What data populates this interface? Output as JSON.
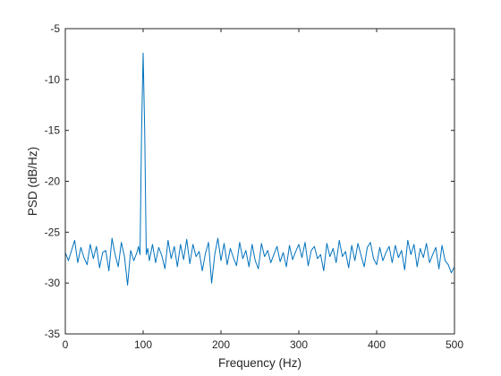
{
  "chart_data": {
    "type": "line",
    "title": "",
    "xlabel": "Frequency (Hz)",
    "ylabel": "PSD (dB/Hz)",
    "xlim": [
      0,
      500
    ],
    "ylim": [
      -35,
      -5
    ],
    "xticks": [
      0,
      100,
      200,
      300,
      400,
      500
    ],
    "yticks": [
      -35,
      -30,
      -25,
      -20,
      -15,
      -10,
      -5
    ],
    "grid": false,
    "legend": "none",
    "colors": {
      "line": "#0072bd",
      "axes": "#262626",
      "background": "#ffffff"
    },
    "series": [
      {
        "x": [
          0,
          4,
          8,
          12,
          16,
          20,
          24,
          28,
          32,
          36,
          40,
          44,
          48,
          52,
          56,
          60,
          64,
          68,
          72,
          76,
          80,
          84,
          88,
          92,
          94,
          96,
          98,
          100,
          102,
          104,
          106,
          108,
          112,
          116,
          120,
          124,
          128,
          132,
          136,
          140,
          144,
          148,
          152,
          156,
          160,
          164,
          168,
          172,
          176,
          180,
          184,
          188,
          192,
          196,
          200,
          204,
          208,
          212,
          216,
          220,
          224,
          228,
          232,
          236,
          240,
          244,
          248,
          252,
          256,
          260,
          264,
          268,
          272,
          276,
          280,
          284,
          288,
          292,
          296,
          300,
          304,
          308,
          312,
          316,
          320,
          324,
          328,
          332,
          336,
          340,
          344,
          348,
          352,
          356,
          360,
          364,
          368,
          372,
          376,
          380,
          384,
          388,
          392,
          396,
          400,
          404,
          408,
          412,
          416,
          420,
          424,
          428,
          432,
          436,
          440,
          444,
          448,
          452,
          456,
          460,
          464,
          468,
          472,
          476,
          480,
          484,
          488,
          492,
          496,
          500
        ],
        "y": [
          -27.0,
          -27.8,
          -26.8,
          -25.8,
          -28.0,
          -26.5,
          -27.5,
          -28.2,
          -26.2,
          -27.6,
          -26.4,
          -28.5,
          -27.0,
          -26.8,
          -28.8,
          -25.6,
          -27.2,
          -28.4,
          -26.0,
          -27.4,
          -30.2,
          -26.8,
          -27.8,
          -27.0,
          -26.4,
          -27.2,
          -15.0,
          -7.4,
          -15.0,
          -27.2,
          -26.6,
          -27.8,
          -26.2,
          -28.0,
          -26.5,
          -27.3,
          -28.6,
          -25.8,
          -27.6,
          -26.4,
          -28.4,
          -26.2,
          -27.7,
          -25.7,
          -28.1,
          -26.2,
          -27.4,
          -26.9,
          -28.8,
          -27.1,
          -26.0,
          -30.0,
          -27.2,
          -25.6,
          -27.8,
          -26.1,
          -28.2,
          -26.6,
          -27.5,
          -28.3,
          -26.0,
          -27.6,
          -26.8,
          -28.4,
          -26.2,
          -27.8,
          -28.6,
          -26.1,
          -27.4,
          -26.8,
          -28.0,
          -27.2,
          -26.4,
          -27.9,
          -27.0,
          -28.4,
          -26.3,
          -27.7,
          -26.9,
          -26.2,
          -27.5,
          -26.0,
          -28.3,
          -26.8,
          -26.4,
          -27.6,
          -27.2,
          -28.8,
          -26.1,
          -27.4,
          -26.6,
          -28.0,
          -25.8,
          -27.4,
          -26.9,
          -28.5,
          -26.3,
          -27.8,
          -26.1,
          -27.3,
          -28.4,
          -26.5,
          -26.0,
          -27.6,
          -28.2,
          -26.5,
          -27.8,
          -27.0,
          -26.4,
          -28.0,
          -26.3,
          -27.5,
          -26.8,
          -28.7,
          -25.8,
          -27.2,
          -26.2,
          -28.4,
          -26.6,
          -27.5,
          -26.1,
          -28.0,
          -27.2,
          -26.5,
          -28.6,
          -26.3,
          -27.8,
          -28.2,
          -29.0,
          -28.4
        ]
      }
    ]
  }
}
